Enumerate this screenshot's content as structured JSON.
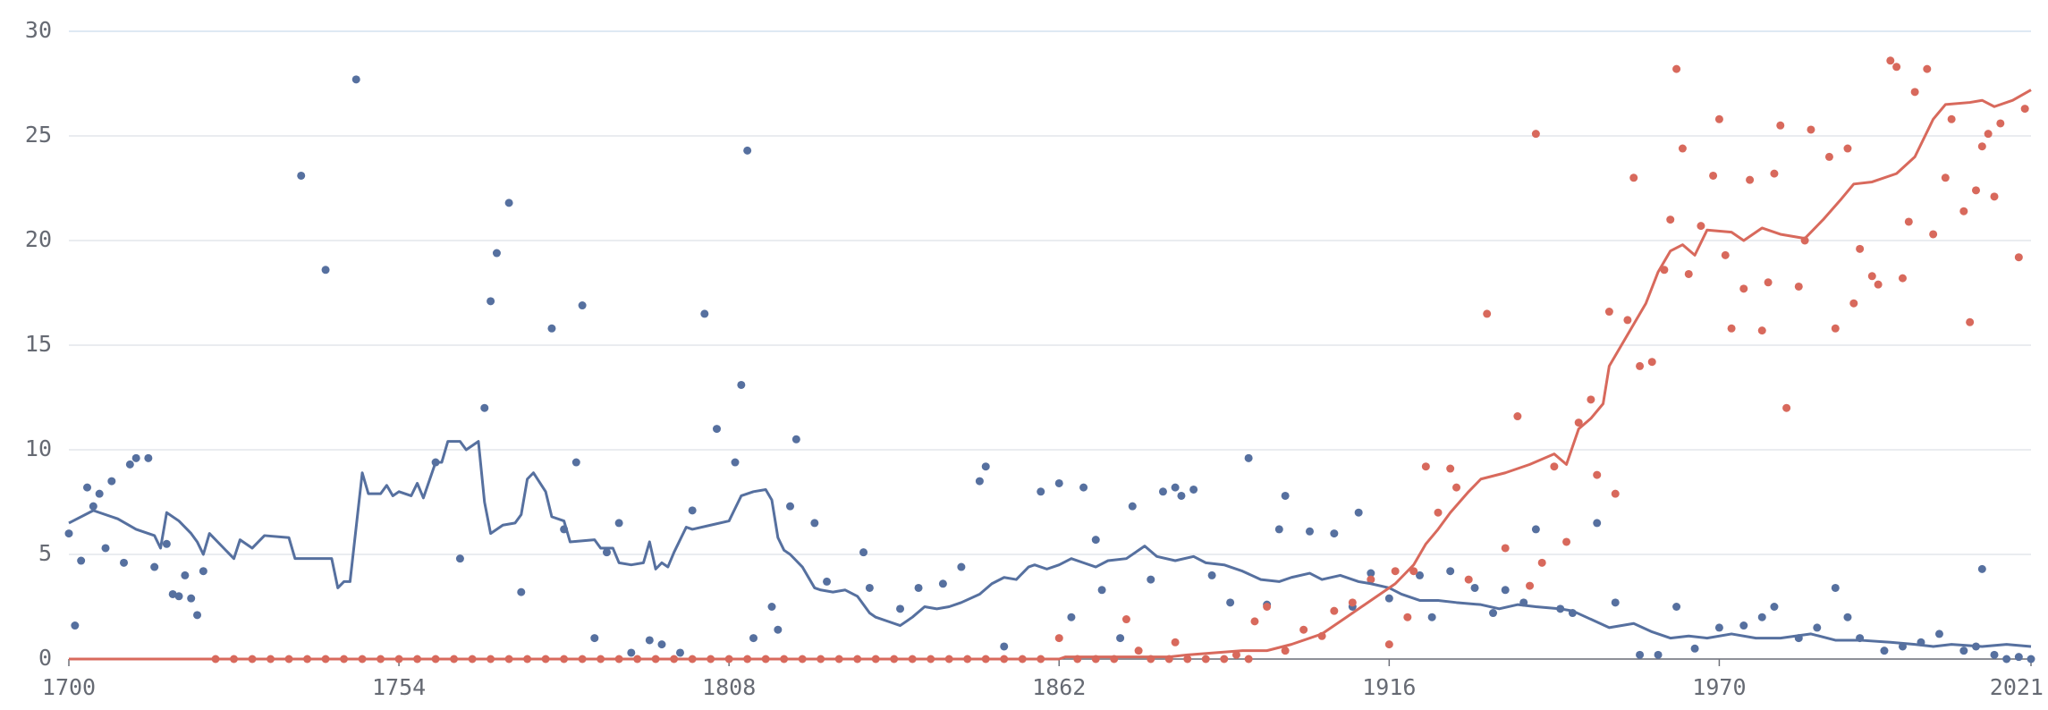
{
  "chart_data": {
    "type": "line",
    "xlim": [
      1700,
      2021
    ],
    "xticks": [
      1700,
      1754,
      1808,
      1862,
      1916,
      1970,
      2021
    ],
    "ylim": [
      0,
      30
    ],
    "yticks": [
      0,
      5,
      10,
      15,
      20,
      25,
      30
    ],
    "grid": true,
    "series": [
      {
        "type": "scatter",
        "color": "#56709f",
        "x": [
          1700,
          1701,
          1702,
          1703,
          1704,
          1705,
          1706,
          1707,
          1709,
          1710,
          1711,
          1713,
          1714,
          1716,
          1717,
          1718,
          1719,
          1720,
          1721,
          1722,
          1738,
          1742,
          1747,
          1760,
          1764,
          1768,
          1769,
          1770,
          1772,
          1774,
          1779,
          1781,
          1783,
          1784,
          1786,
          1788,
          1790,
          1792,
          1795,
          1797,
          1800,
          1802,
          1804,
          1806,
          1809,
          1810,
          1811,
          1812,
          1815,
          1816,
          1818,
          1819,
          1822,
          1824,
          1830,
          1831,
          1836,
          1839,
          1843,
          1846,
          1849,
          1850,
          1853,
          1859,
          1862,
          1864,
          1866,
          1868,
          1869,
          1872,
          1874,
          1877,
          1879,
          1881,
          1882,
          1884,
          1887,
          1890,
          1893,
          1896,
          1898,
          1899,
          1903,
          1907,
          1910,
          1911,
          1913,
          1916,
          1921,
          1923,
          1926,
          1930,
          1933,
          1935,
          1938,
          1940,
          1944,
          1946,
          1950,
          1953,
          1957,
          1960,
          1963,
          1966,
          1970,
          1974,
          1977,
          1979,
          1983,
          1986,
          1989,
          1991,
          1993,
          1997,
          2000,
          2003,
          2006,
          2010,
          2012,
          2013,
          2015,
          2017,
          2019,
          2021
        ],
        "values": [
          6.0,
          1.6,
          4.7,
          8.2,
          7.3,
          7.9,
          5.3,
          8.5,
          4.6,
          9.3,
          9.6,
          9.6,
          4.4,
          5.5,
          3.1,
          3.0,
          4.0,
          2.9,
          2.1,
          4.2,
          23.1,
          18.6,
          27.7,
          9.4,
          4.8,
          12.0,
          17.1,
          19.4,
          21.8,
          3.2,
          15.8,
          6.2,
          9.4,
          16.9,
          1.0,
          5.1,
          6.5,
          0.3,
          0.9,
          0.7,
          0.3,
          7.1,
          16.5,
          11.0,
          9.4,
          13.1,
          24.3,
          1.0,
          2.5,
          1.4,
          7.3,
          10.5,
          6.5,
          3.7,
          5.1,
          3.4,
          2.4,
          3.4,
          3.6,
          4.4,
          8.5,
          9.2,
          0.6,
          8.0,
          8.4,
          2.0,
          8.2,
          5.7,
          3.3,
          1.0,
          7.3,
          3.8,
          8.0,
          8.2,
          7.8,
          8.1,
          4.0,
          2.7,
          9.6,
          2.6,
          6.2,
          7.8,
          6.1,
          6.0,
          2.5,
          7.0,
          4.1,
          2.9,
          4.0,
          2.0,
          4.2,
          3.4,
          2.2,
          3.3,
          2.7,
          6.2,
          2.4,
          2.2,
          6.5,
          2.7,
          0.2,
          0.2,
          2.5,
          0.5,
          1.5,
          1.6,
          2.0,
          2.5,
          1.0,
          1.5,
          3.4,
          2.0,
          1.0,
          0.4,
          0.6,
          0.8,
          1.2,
          0.4,
          0.6,
          4.3,
          0.2,
          0,
          0.1,
          0
        ]
      },
      {
        "type": "scatter",
        "color": "#d8695c",
        "x": [
          1724,
          1727,
          1730,
          1733,
          1736,
          1739,
          1742,
          1745,
          1748,
          1751,
          1754,
          1757,
          1760,
          1763,
          1766,
          1769,
          1772,
          1775,
          1778,
          1781,
          1784,
          1787,
          1790,
          1793,
          1796,
          1799,
          1802,
          1805,
          1808,
          1811,
          1814,
          1817,
          1820,
          1823,
          1826,
          1829,
          1832,
          1835,
          1838,
          1841,
          1844,
          1847,
          1850,
          1853,
          1856,
          1859,
          1865,
          1868,
          1871,
          1877,
          1880,
          1883,
          1886,
          1889,
          1893
        ],
        "values": [
          0,
          0,
          0,
          0,
          0,
          0,
          0,
          0,
          0,
          0,
          0,
          0,
          0,
          0,
          0,
          0,
          0,
          0,
          0,
          0,
          0,
          0,
          0,
          0,
          0,
          0,
          0,
          0,
          0,
          0,
          0,
          0,
          0,
          0,
          0,
          0,
          0,
          0,
          0,
          0,
          0,
          0,
          0,
          0,
          0,
          0,
          0,
          0,
          0,
          0,
          0,
          0,
          0,
          0,
          0
        ]
      },
      {
        "type": "scatter",
        "color": "#d8695c",
        "x": [
          1862,
          1873,
          1875,
          1881,
          1891,
          1894,
          1896,
          1899,
          1902,
          1905,
          1907,
          1910,
          1913,
          1916,
          1917,
          1919,
          1920,
          1922,
          1924,
          1926,
          1927,
          1929,
          1932,
          1935,
          1937,
          1939,
          1940,
          1941,
          1943,
          1945,
          1947,
          1949,
          1950,
          1952,
          1953,
          1955,
          1956,
          1957,
          1959,
          1961,
          1962,
          1963,
          1964,
          1965,
          1967,
          1969,
          1970,
          1971,
          1972,
          1974,
          1975,
          1977,
          1978,
          1979,
          1980,
          1981,
          1983,
          1984,
          1985,
          1988,
          1989,
          1991,
          1992,
          1993,
          1995,
          1996,
          1998,
          1999,
          2000,
          2001,
          2002,
          2004,
          2005,
          2007,
          2008,
          2010,
          2011,
          2012,
          2013,
          2014,
          2015,
          2016,
          2019,
          2020
        ],
        "values": [
          1.0,
          1.9,
          0.4,
          0.8,
          0.2,
          1.8,
          2.5,
          0.4,
          1.4,
          1.1,
          2.3,
          2.7,
          3.8,
          0.7,
          4.2,
          2.0,
          4.2,
          9.2,
          7.0,
          9.1,
          8.2,
          3.8,
          16.5,
          5.3,
          11.6,
          3.5,
          25.1,
          4.6,
          9.2,
          5.6,
          11.3,
          12.4,
          8.8,
          16.6,
          7.9,
          16.2,
          23.0,
          14.0,
          14.2,
          18.6,
          21.0,
          28.2,
          24.4,
          18.4,
          20.7,
          23.1,
          25.8,
          19.3,
          15.8,
          17.7,
          22.9,
          15.7,
          18.0,
          23.2,
          25.5,
          12.0,
          17.8,
          20.0,
          25.3,
          24.0,
          15.8,
          24.4,
          17.0,
          19.6,
          18.3,
          17.9,
          28.6,
          28.3,
          18.2,
          20.9,
          27.1,
          28.2,
          20.3,
          23.0,
          25.8,
          21.4,
          16.1,
          22.4,
          24.5,
          25.1,
          22.1,
          25.6,
          19.2,
          26.3
        ]
      },
      {
        "type": "line",
        "color": "#56709f",
        "x": [
          1700,
          1704,
          1708,
          1711,
          1714,
          1715,
          1716,
          1718,
          1720,
          1721,
          1722,
          1723,
          1725,
          1727,
          1728,
          1730,
          1732,
          1736,
          1737,
          1743,
          1744,
          1745,
          1746,
          1748,
          1749,
          1751,
          1752,
          1753,
          1754,
          1756,
          1757,
          1758,
          1760,
          1761,
          1762,
          1764,
          1765,
          1767,
          1768,
          1769,
          1771,
          1773,
          1774,
          1775,
          1776,
          1778,
          1779,
          1781,
          1782,
          1786,
          1787,
          1789,
          1790,
          1792,
          1794,
          1795,
          1796,
          1797,
          1798,
          1799,
          1801,
          1802,
          1805,
          1808,
          1809,
          1810,
          1812,
          1814,
          1815,
          1816,
          1817,
          1818,
          1820,
          1822,
          1823,
          1825,
          1827,
          1829,
          1831,
          1832,
          1834,
          1836,
          1838,
          1840,
          1842,
          1844,
          1846,
          1849,
          1851,
          1853,
          1855,
          1857,
          1858,
          1860,
          1862,
          1864,
          1866,
          1868,
          1870,
          1873,
          1876,
          1878,
          1881,
          1884,
          1886,
          1889,
          1892,
          1895,
          1898,
          1900,
          1903,
          1905,
          1908,
          1911,
          1913,
          1916,
          1918,
          1921,
          1924,
          1927,
          1931,
          1934,
          1937,
          1940,
          1944,
          1946,
          1949,
          1952,
          1956,
          1959,
          1962,
          1965,
          1968,
          1972,
          1976,
          1980,
          1985,
          1989,
          1993,
          1998,
          2002,
          2005,
          2008,
          2013,
          2017,
          2021
        ],
        "values": [
          6.5,
          7.1,
          6.7,
          6.2,
          5.9,
          5.3,
          7.0,
          6.6,
          6.0,
          5.6,
          5.0,
          6.0,
          5.4,
          4.8,
          5.7,
          5.3,
          5.9,
          5.8,
          4.8,
          4.8,
          3.4,
          3.7,
          3.7,
          8.9,
          7.9,
          7.9,
          8.3,
          7.8,
          8.0,
          7.8,
          8.4,
          7.7,
          9.4,
          9.4,
          10.4,
          10.4,
          10.0,
          10.4,
          7.5,
          6.0,
          6.4,
          6.5,
          6.9,
          8.6,
          8.9,
          8.0,
          6.8,
          6.6,
          5.6,
          5.7,
          5.3,
          5.3,
          4.6,
          4.5,
          4.6,
          5.6,
          4.3,
          4.6,
          4.4,
          5.1,
          6.3,
          6.2,
          6.4,
          6.6,
          7.2,
          7.8,
          8.0,
          8.1,
          7.6,
          5.8,
          5.2,
          5.0,
          4.4,
          3.4,
          3.3,
          3.2,
          3.3,
          3.0,
          2.2,
          2.0,
          1.8,
          1.6,
          2.0,
          2.5,
          2.4,
          2.5,
          2.7,
          3.1,
          3.6,
          3.9,
          3.8,
          4.4,
          4.5,
          4.3,
          4.5,
          4.8,
          4.6,
          4.4,
          4.7,
          4.8,
          5.4,
          4.9,
          4.7,
          4.9,
          4.6,
          4.5,
          4.2,
          3.8,
          3.7,
          3.9,
          4.1,
          3.8,
          4.0,
          3.7,
          3.6,
          3.4,
          3.1,
          2.8,
          2.8,
          2.7,
          2.6,
          2.4,
          2.6,
          2.5,
          2.4,
          2.3,
          1.9,
          1.5,
          1.7,
          1.3,
          1.0,
          1.1,
          1.0,
          1.2,
          1.0,
          1.0,
          1.2,
          0.9,
          0.9,
          0.8,
          0.7,
          0.6,
          0.7,
          0.6,
          0.7,
          0.6
        ]
      },
      {
        "type": "line",
        "color": "#d8695c",
        "x": [
          1700,
          1862,
          1863,
          1880,
          1883,
          1892,
          1896,
          1900,
          1905,
          1909,
          1913,
          1917,
          1920,
          1922,
          1924,
          1926,
          1929,
          1931,
          1935,
          1939,
          1943,
          1945,
          1947,
          1949,
          1951,
          1952,
          1956,
          1958,
          1960,
          1962,
          1964,
          1966,
          1968,
          1972,
          1974,
          1977,
          1980,
          1984,
          1987,
          1990,
          1992,
          1995,
          1999,
          2002,
          2005,
          2007,
          2011,
          2013,
          2015,
          2018,
          2021
        ],
        "values": [
          0,
          0,
          0.1,
          0.1,
          0.2,
          0.4,
          0.4,
          0.7,
          1.2,
          2.0,
          2.8,
          3.6,
          4.5,
          5.5,
          6.2,
          7.0,
          8.0,
          8.6,
          8.9,
          9.3,
          9.8,
          9.3,
          11.0,
          11.5,
          12.2,
          14.0,
          16.0,
          17.0,
          18.5,
          19.5,
          19.8,
          19.3,
          20.5,
          20.4,
          20.0,
          20.6,
          20.3,
          20.1,
          21.0,
          22.0,
          22.7,
          22.8,
          23.2,
          24.0,
          25.8,
          26.5,
          26.6,
          26.7,
          26.4,
          26.7,
          27.2
        ]
      }
    ]
  }
}
